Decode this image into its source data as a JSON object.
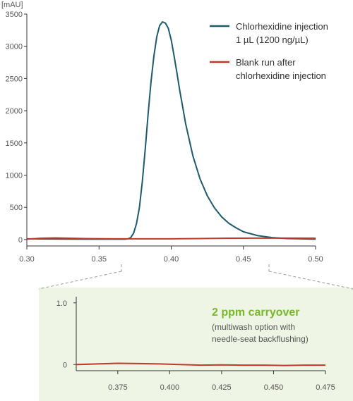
{
  "chart_data": [
    {
      "type": "line",
      "ylabel": "[mAU]",
      "xlim": [
        0.3,
        0.5
      ],
      "ylim": [
        -100,
        3500
      ],
      "xticks": [
        "0.30",
        "0.35",
        "0.40",
        "0.45",
        "0.50"
      ],
      "yticks": [
        "0",
        "500",
        "1000",
        "1500",
        "2000",
        "2500",
        "3000",
        "3500"
      ],
      "legend_placement": "top-right",
      "series": [
        {
          "name": "Chlorhexidine injection 1 µL (1200 ng/µL)",
          "legend_lines": [
            "Chlorhexidine injection",
            "1 µL (1200 ng/µL)"
          ],
          "color": "#1e5a6e",
          "x": [
            0.3,
            0.34,
            0.36,
            0.368,
            0.37,
            0.372,
            0.374,
            0.376,
            0.378,
            0.38,
            0.382,
            0.384,
            0.386,
            0.388,
            0.39,
            0.392,
            0.394,
            0.396,
            0.398,
            0.4,
            0.402,
            0.404,
            0.406,
            0.408,
            0.41,
            0.415,
            0.42,
            0.425,
            0.43,
            0.435,
            0.44,
            0.445,
            0.45,
            0.46,
            0.47,
            0.48,
            0.49,
            0.5
          ],
          "y": [
            10,
            5,
            5,
            5,
            10,
            30,
            100,
            250,
            500,
            900,
            1400,
            1950,
            2450,
            2850,
            3150,
            3320,
            3380,
            3360,
            3280,
            3100,
            2850,
            2580,
            2300,
            2050,
            1800,
            1300,
            940,
            680,
            490,
            350,
            250,
            180,
            120,
            60,
            30,
            15,
            10,
            5
          ]
        },
        {
          "name": "Blank run after chlorhexidine injection",
          "legend_lines": [
            "Blank run after",
            "chlorhexidine injection"
          ],
          "color": "#c0392b",
          "x": [
            0.3,
            0.31,
            0.32,
            0.34,
            0.36,
            0.37,
            0.38,
            0.4,
            0.42,
            0.44,
            0.46,
            0.48,
            0.5
          ],
          "y": [
            5,
            20,
            25,
            15,
            10,
            10,
            10,
            10,
            15,
            20,
            22,
            22,
            20
          ]
        }
      ]
    },
    {
      "type": "line",
      "xlim": [
        0.355,
        0.475
      ],
      "ylim": [
        -0.1,
        1.1
      ],
      "xticks": [
        "0.375",
        "0.400",
        "0.425",
        "0.450",
        "0.475"
      ],
      "yticks": [
        "0",
        "1.0"
      ],
      "annotation_title": "2 ppm carryover",
      "annotation_lines": [
        "(multiwash option with",
        "needle-seat backflushing)"
      ],
      "series": [
        {
          "color": "#c0392b",
          "x": [
            0.355,
            0.365,
            0.375,
            0.385,
            0.395,
            0.405,
            0.415,
            0.425,
            0.435,
            0.445,
            0.455,
            0.465,
            0.475
          ],
          "y": [
            0.0,
            0.01,
            0.02,
            0.015,
            0.01,
            0.0,
            -0.01,
            -0.005,
            -0.01,
            -0.01,
            -0.015,
            -0.01,
            -0.01
          ]
        }
      ]
    }
  ]
}
